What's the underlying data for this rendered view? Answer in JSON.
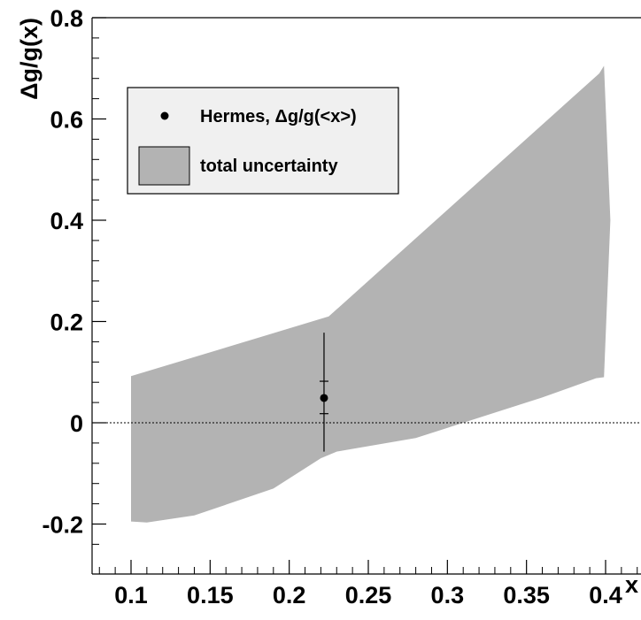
{
  "chart_data": {
    "type": "area",
    "title": "",
    "xlabel": "x",
    "ylabel": "Δg/g(x)",
    "xlim": [
      0.075,
      0.425
    ],
    "ylim": [
      -0.25,
      0.8
    ],
    "xticks": [
      0.1,
      0.15,
      0.2,
      0.25,
      0.3,
      0.35,
      0.4
    ],
    "xtick_labels": [
      "0.1",
      "0.15",
      "0.2",
      "0.25",
      "0.3",
      "0.35",
      "0.4"
    ],
    "yticks": [
      -0.2,
      0,
      0.2,
      0.4,
      0.6,
      0.8
    ],
    "ytick_labels": [
      "-0.2",
      "0",
      "0.2",
      "0.4",
      "0.6",
      "0.8"
    ],
    "grid": false,
    "zero_line": true,
    "legend_position": "top-left",
    "band": {
      "name": "total uncertainty",
      "color": "#b3b3b3",
      "upper": [
        [
          0.1,
          0.092
        ],
        [
          0.225,
          0.21
        ],
        [
          0.396,
          0.69
        ],
        [
          0.399,
          0.705
        ],
        [
          0.403,
          0.4
        ]
      ],
      "lower": [
        [
          0.1,
          -0.195
        ],
        [
          0.11,
          -0.197
        ],
        [
          0.14,
          -0.183
        ],
        [
          0.19,
          -0.13
        ],
        [
          0.22,
          -0.07
        ],
        [
          0.23,
          -0.057
        ],
        [
          0.28,
          -0.03
        ],
        [
          0.32,
          0.01
        ],
        [
          0.36,
          0.05
        ],
        [
          0.394,
          0.088
        ],
        [
          0.399,
          0.09
        ],
        [
          0.403,
          0.4
        ]
      ]
    },
    "series": [
      {
        "name": "Hermes, Δg/g(<x>)",
        "type": "point",
        "x": 0.222,
        "y": 0.049,
        "stat_err": [
          0.018,
          0.082
        ],
        "total_err": [
          -0.057,
          0.178
        ]
      }
    ],
    "legend": {
      "point_label": "Hermes, Δg/g(<x>)",
      "band_label": "total uncertainty"
    }
  }
}
